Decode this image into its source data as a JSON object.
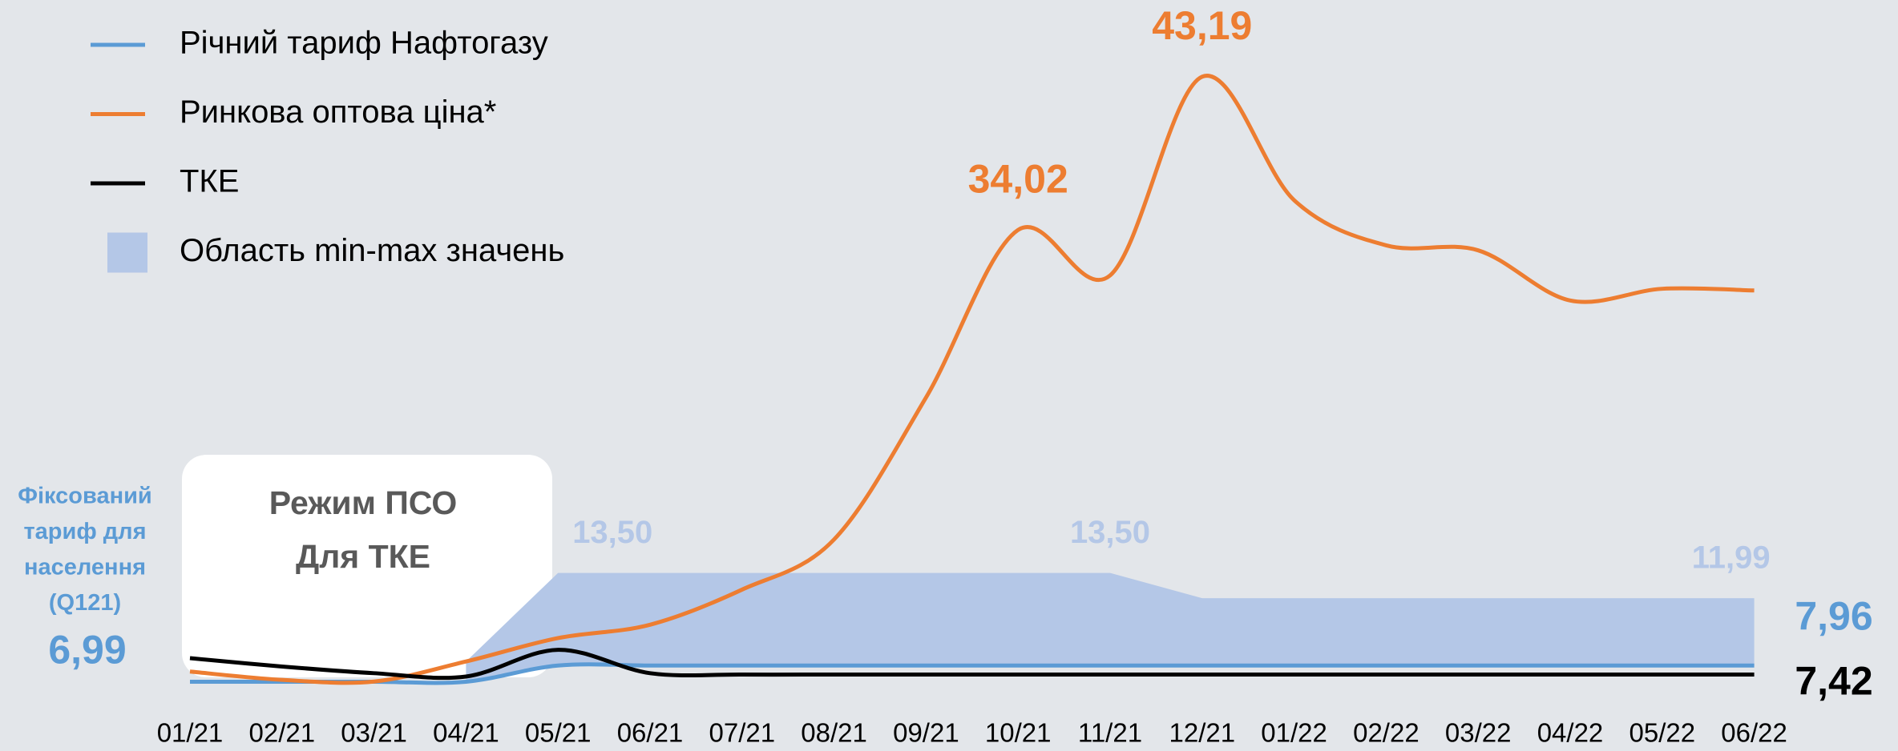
{
  "chart_data": {
    "type": "line",
    "categories": [
      "01/21",
      "02/21",
      "03/21",
      "04/21",
      "05/21",
      "06/21",
      "07/21",
      "08/21",
      "09/21",
      "10/21",
      "11/21",
      "12/21",
      "01/22",
      "02/22",
      "03/22",
      "04/22",
      "05/22",
      "06/22"
    ],
    "ylim": [
      5,
      45
    ],
    "note": [
      "Фіксований",
      "тариф для",
      "населення",
      "(Q121)"
    ],
    "box": [
      "Режим ПСО",
      "Для ТКЕ"
    ],
    "series": [
      {
        "name": "Річний тариф Нафтогазу",
        "color": "#5b9bd5",
        "values": [
          6.99,
          6.99,
          6.99,
          6.99,
          7.96,
          7.96,
          7.96,
          7.96,
          7.96,
          7.96,
          7.96,
          7.96,
          7.96,
          7.96,
          7.96,
          7.96,
          7.96,
          7.96
        ],
        "value_labels": [
          "6,99",
          null,
          null,
          null,
          null,
          null,
          null,
          null,
          null,
          null,
          null,
          null,
          null,
          null,
          null,
          null,
          null,
          "7,96"
        ]
      },
      {
        "name": "Ринкова оптова ціна*",
        "color": "#ed7d31",
        "values": [
          7.6,
          7.1,
          7.0,
          8.2,
          9.6,
          10.4,
          12.5,
          15.5,
          24,
          34.02,
          31.3,
          43.19,
          35.8,
          33.1,
          32.8,
          29.8,
          30.5,
          30.4
        ],
        "value_labels": [
          null,
          null,
          null,
          null,
          null,
          null,
          null,
          null,
          null,
          "34,02",
          null,
          "43,19",
          null,
          null,
          null,
          null,
          null,
          null
        ]
      },
      {
        "name": "ТКЕ",
        "color": "#000000",
        "values": [
          8.4,
          7.9,
          7.5,
          7.3,
          8.9,
          7.5,
          7.42,
          7.42,
          7.42,
          7.42,
          7.42,
          7.42,
          7.42,
          7.42,
          7.42,
          7.42,
          7.42,
          7.42
        ],
        "value_labels": [
          null,
          null,
          null,
          null,
          null,
          null,
          null,
          null,
          null,
          null,
          null,
          null,
          null,
          null,
          null,
          null,
          null,
          "7,42"
        ]
      },
      {
        "name": "Область min-max значень",
        "type": "area",
        "color": "#b4c7e7",
        "values": [
          null,
          null,
          null,
          8.2,
          13.5,
          13.5,
          13.5,
          13.5,
          13.5,
          13.5,
          13.5,
          11.99,
          11.99,
          11.99,
          11.99,
          11.99,
          11.99,
          11.99
        ],
        "lower": [
          null,
          null,
          null,
          6.99,
          7.96,
          7.96,
          7.96,
          7.96,
          7.96,
          7.96,
          7.96,
          7.96,
          7.96,
          7.96,
          7.96,
          7.96,
          7.96,
          7.96
        ],
        "value_labels": [
          null,
          null,
          null,
          null,
          "13,50",
          null,
          null,
          null,
          null,
          null,
          "13,50",
          null,
          null,
          null,
          null,
          null,
          null,
          "11,99"
        ]
      }
    ]
  }
}
